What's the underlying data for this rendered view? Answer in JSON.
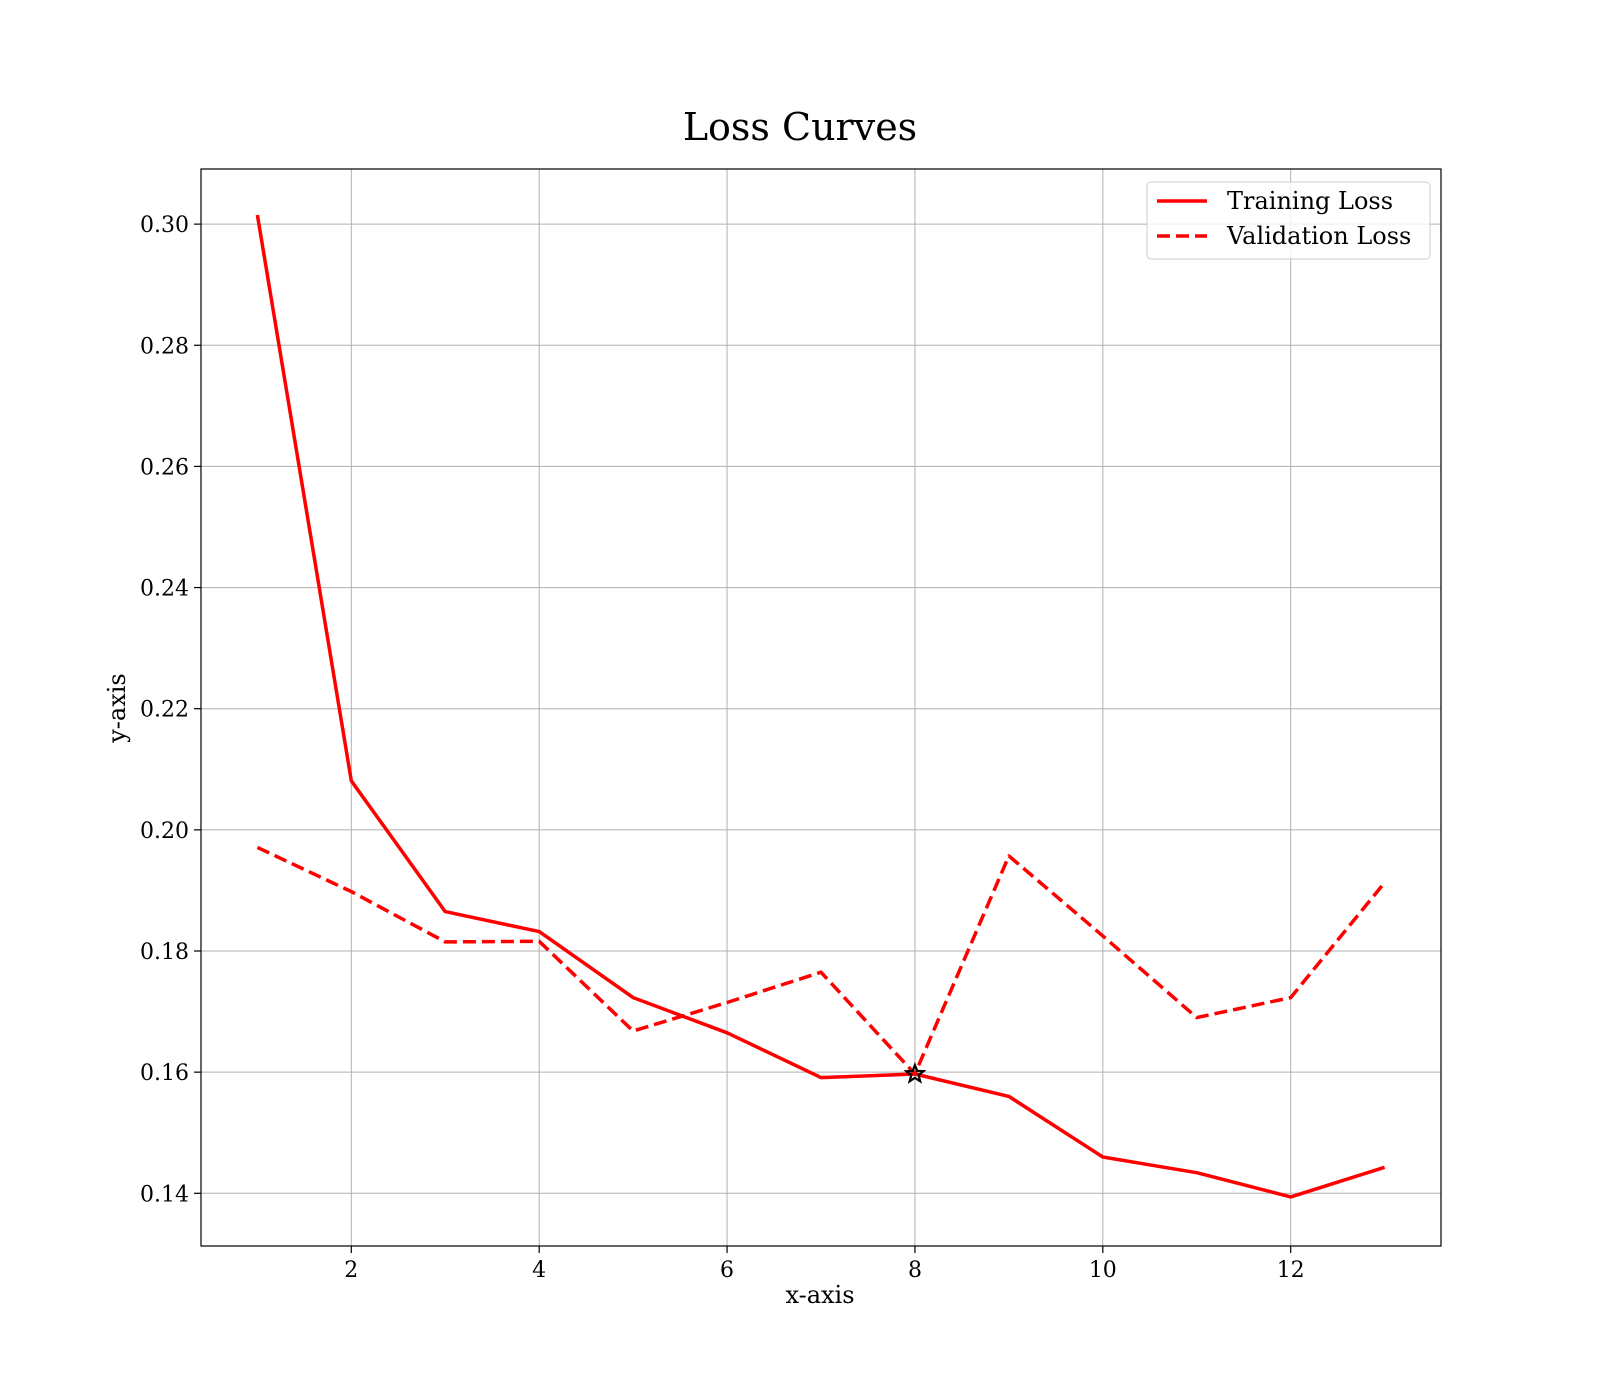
{
  "chart_data": {
    "type": "line",
    "title": "Loss Curves",
    "xlabel": "x-axis",
    "ylabel": "y-axis",
    "xlim": [
      0.4,
      13.6
    ],
    "ylim": [
      0.1313,
      0.3091
    ],
    "xticks": [
      2,
      4,
      6,
      8,
      10,
      12
    ],
    "yticks": [
      0.14,
      0.16,
      0.18,
      0.2,
      0.22,
      0.24,
      0.26,
      0.28,
      0.3
    ],
    "xtick_labels": [
      "2",
      "4",
      "6",
      "8",
      "10",
      "12"
    ],
    "ytick_labels": [
      "0.14",
      "0.16",
      "0.18",
      "0.20",
      "0.22",
      "0.24",
      "0.26",
      "0.28",
      "0.30"
    ],
    "grid": true,
    "legend_position": "top-right",
    "x": [
      1,
      2,
      3,
      4,
      5,
      6,
      7,
      8,
      9,
      10,
      11,
      12,
      13
    ],
    "series": [
      {
        "name": "Training Loss",
        "style": "solid",
        "color": "#ff0000",
        "values": [
          0.3015,
          0.2081,
          0.1865,
          0.1832,
          0.1723,
          0.1665,
          0.1591,
          0.1597,
          0.156,
          0.146,
          0.1434,
          0.1394,
          0.1443
        ]
      },
      {
        "name": "Validation Loss",
        "style": "dashed",
        "color": "#ff0000",
        "values": [
          0.1971,
          0.1898,
          0.1815,
          0.1816,
          0.1668,
          0.1715,
          0.1765,
          0.1597,
          0.1957,
          0.1825,
          0.169,
          0.1723,
          0.1913
        ]
      }
    ],
    "marker": {
      "x": 8,
      "y": 0.1597,
      "shape": "star",
      "color": "#000000"
    }
  }
}
